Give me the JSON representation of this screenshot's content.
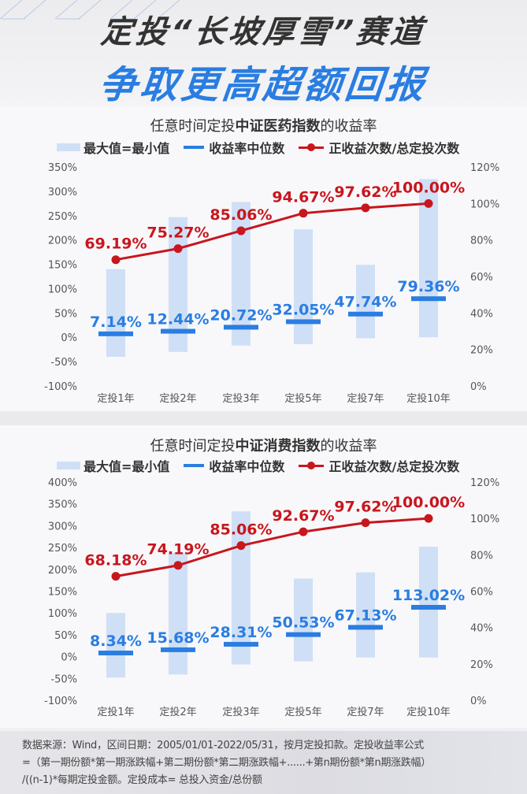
{
  "header": {
    "title_line1": "定投“长坡厚雪”赛道",
    "title_line2": "争取更高超额回报"
  },
  "colors": {
    "range_bar": "#cfdff6",
    "median_line": "#2a7de1",
    "positive_ratio_line": "#c8161d",
    "title_blue": "#2a7de1",
    "text_dark": "#333333"
  },
  "legend": {
    "range": "最大值=最小值",
    "median": "收益率中位数",
    "ratio": "正收益次数/总定投次数"
  },
  "charts": [
    {
      "title_prefix": "任意时间定投",
      "title_bold": "中证医药指数",
      "title_suffix": "的收益率"
    },
    {
      "title_prefix": "任意时间定投",
      "title_bold": "中证消费指数",
      "title_suffix": "的收益率"
    }
  ],
  "chart_data": [
    {
      "type": "bar",
      "title": "任意时间定投中证医药指数的收益率",
      "categories": [
        "定投1年",
        "定投2年",
        "定投3年",
        "定投5年",
        "定投7年",
        "定投10年"
      ],
      "legend": [
        "最大值=最小值",
        "收益率中位数",
        "正收益次数/总定投次数"
      ],
      "left_axis": {
        "ticks": [
          "350%",
          "300%",
          "250%",
          "200%",
          "150%",
          "100%",
          "50%",
          "0%",
          "-50%",
          "-100%"
        ],
        "ylim": [
          -100,
          350
        ]
      },
      "right_axis": {
        "ticks": [
          "120%",
          "100%",
          "80%",
          "60%",
          "40%",
          "20%",
          "0%"
        ],
        "ylim": [
          0,
          120
        ]
      },
      "series": [
        {
          "name": "最大值",
          "axis": "left",
          "values": [
            140,
            247,
            278,
            222,
            149,
            325
          ]
        },
        {
          "name": "最小值",
          "axis": "left",
          "values": [
            -40,
            -30,
            -17,
            -14,
            -2,
            0
          ]
        },
        {
          "name": "收益率中位数",
          "axis": "left",
          "values": [
            7.14,
            12.44,
            20.72,
            32.05,
            47.74,
            79.36
          ],
          "labels": [
            "7.14%",
            "12.44%",
            "20.72%",
            "32.05%",
            "47.74%",
            "79.36%"
          ]
        },
        {
          "name": "正收益次数/总定投次数",
          "axis": "right",
          "type": "line",
          "values": [
            69.19,
            75.27,
            85.06,
            94.67,
            97.62,
            100.0
          ],
          "labels": [
            "69.19%",
            "75.27%",
            "85.06%",
            "94.67%",
            "97.62%",
            "100.00%"
          ]
        }
      ]
    },
    {
      "type": "bar",
      "title": "任意时间定投中证消费指数的收益率",
      "categories": [
        "定投1年",
        "定投2年",
        "定投3年",
        "定投5年",
        "定投7年",
        "定投10年"
      ],
      "legend": [
        "最大值=最小值",
        "收益率中位数",
        "正收益次数/总定投次数"
      ],
      "left_axis": {
        "ticks": [
          "400%",
          "350%",
          "300%",
          "250%",
          "200%",
          "150%",
          "100%",
          "50%",
          "0%",
          "-50%",
          "-100%"
        ],
        "ylim": [
          -100,
          400
        ]
      },
      "right_axis": {
        "ticks": [
          "120%",
          "100%",
          "80%",
          "60%",
          "40%",
          "20%",
          "0%"
        ],
        "ylim": [
          0,
          120
        ]
      },
      "series": [
        {
          "name": "最大值",
          "axis": "left",
          "values": [
            100,
            238,
            333,
            179,
            193,
            252
          ]
        },
        {
          "name": "最小值",
          "axis": "left",
          "values": [
            -48,
            -41,
            -18,
            -11,
            -2,
            -2
          ]
        },
        {
          "name": "收益率中位数",
          "axis": "left",
          "values": [
            8.34,
            15.68,
            28.31,
            50.53,
            67.13,
            113.02
          ],
          "labels": [
            "8.34%",
            "15.68%",
            "28.31%",
            "50.53%",
            "67.13%",
            "113.02%"
          ]
        },
        {
          "name": "正收益次数/总定投次数",
          "axis": "right",
          "type": "line",
          "values": [
            68.18,
            74.19,
            85.06,
            92.67,
            97.62,
            100.0
          ],
          "labels": [
            "68.18%",
            "74.19%",
            "85.06%",
            "92.67%",
            "97.62%",
            "100.00%"
          ]
        }
      ]
    }
  ],
  "footer": {
    "line1": "数据来源：Wind，区间日期：2005/01/01-2022/05/31，按月定投扣款。定投收益率公式",
    "line2": "=（第一期份额*第一期涨跌幅+第二期份额*第二期涨跌幅+......+第n期份额*第n期涨跌幅）",
    "line3": "/((n-1)*每期定投金额。定投成本= 总投入资金/总份额"
  }
}
